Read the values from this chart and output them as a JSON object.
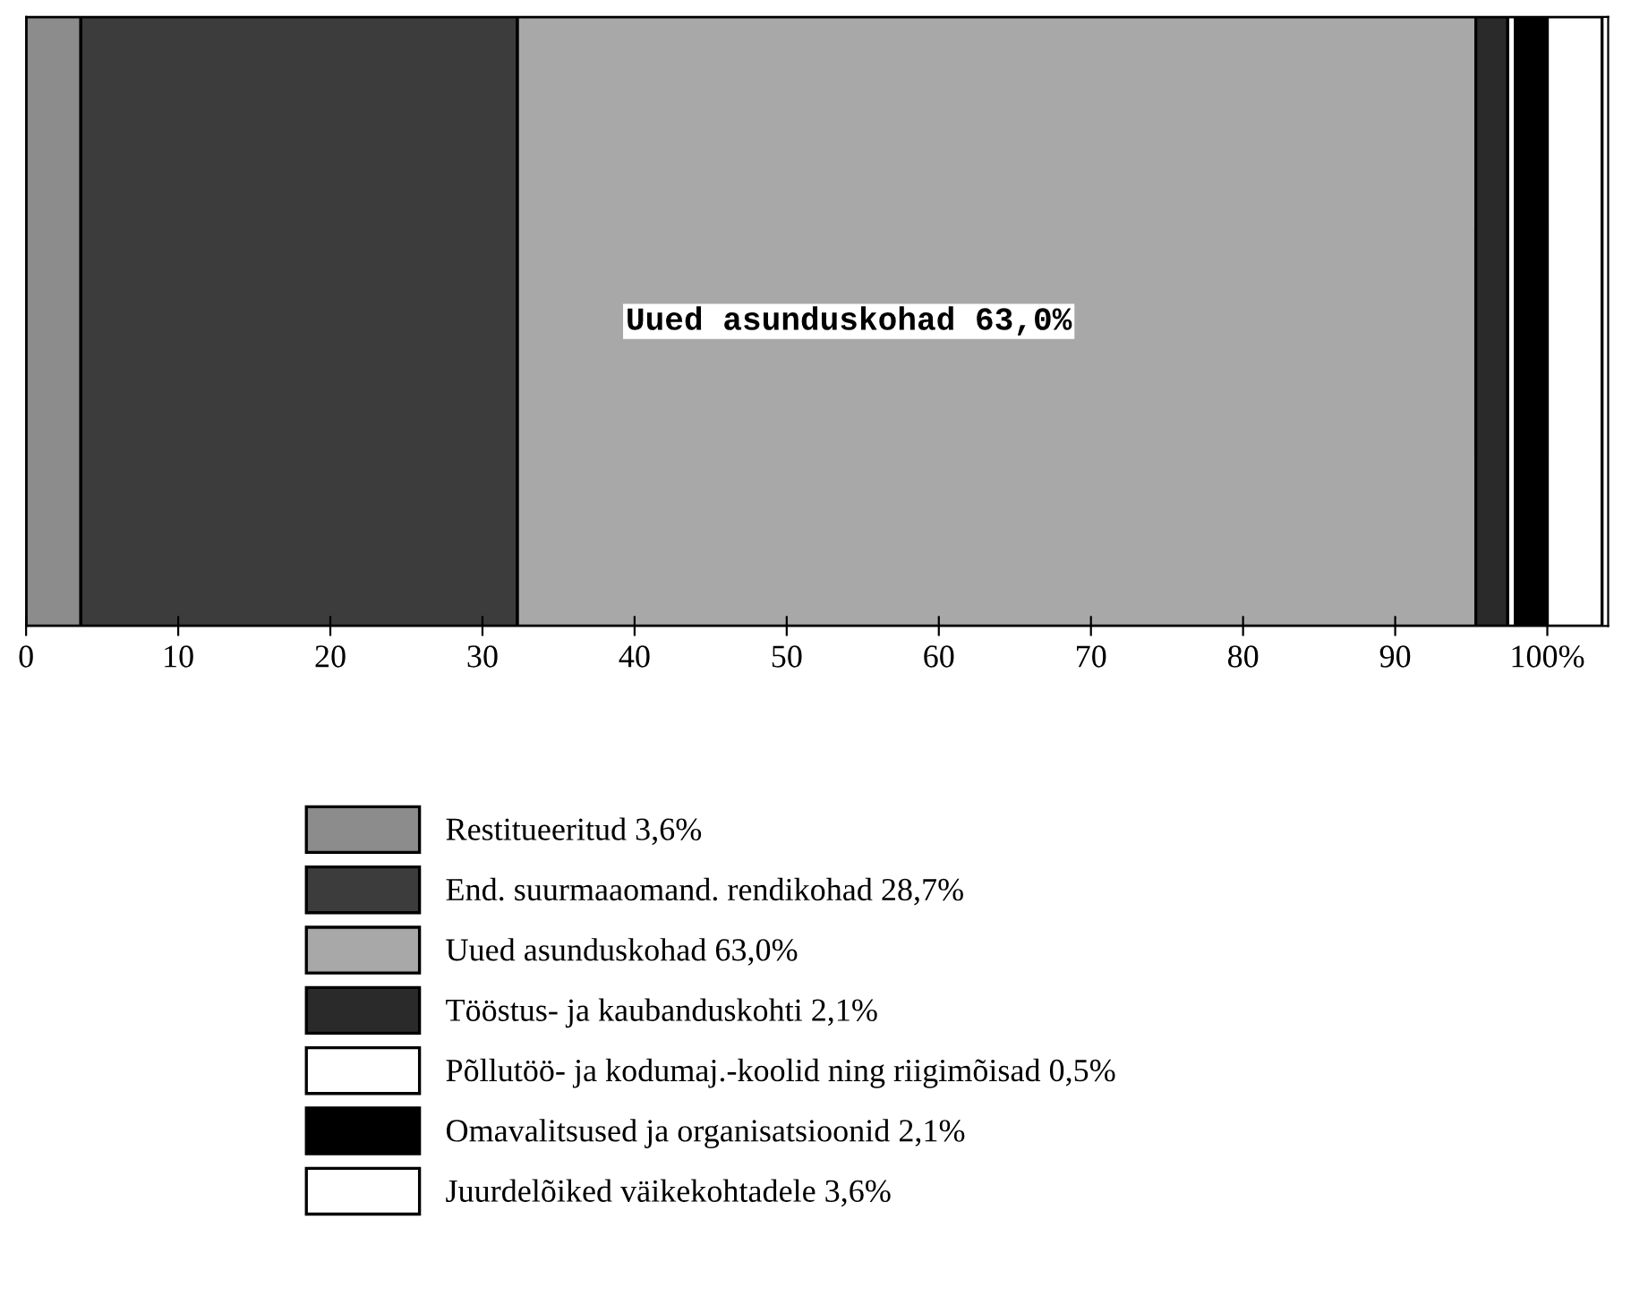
{
  "chart_data": {
    "type": "bar",
    "orientation": "horizontal",
    "stacked": true,
    "categories": [
      null
    ],
    "series": [
      {
        "name": "Restitueeritud 3,6%",
        "color": "#8c8c8c",
        "values": [
          3.6
        ]
      },
      {
        "name": "End. suurmaaomand. rendikohad 28,7%",
        "color": "#3c3c3c",
        "values": [
          28.7
        ]
      },
      {
        "name": "Uued asunduskohad 63,0%",
        "color": "#a8a8a8",
        "values": [
          63.0
        ]
      },
      {
        "name": "Tööstus- ja kaubanduskohti 2,1%",
        "color": "#2a2a2a",
        "values": [
          2.1
        ]
      },
      {
        "name": "Põllutöö- ja kodumaj.-koolid ning riigimõisad 0,5%",
        "color": "#ffffff",
        "values": [
          0.5
        ]
      },
      {
        "name": "Omavalitsused ja organisatsioonid 2,1%",
        "color": "#000000",
        "values": [
          2.1
        ]
      },
      {
        "name": "Juurdelõiked väikekohtadele 3,6%",
        "color": "#ffffff",
        "values": [
          3.6
        ]
      }
    ],
    "annotations": [
      "Uued asunduskohad 63,0%"
    ],
    "xlim": [
      0,
      104
    ],
    "xticks": [
      0,
      10,
      20,
      30,
      40,
      50,
      60,
      70,
      80,
      90,
      {
        "value": 100,
        "label": "100%"
      }
    ],
    "tick_labels": "x",
    "grid": false,
    "legend": "bottom"
  }
}
